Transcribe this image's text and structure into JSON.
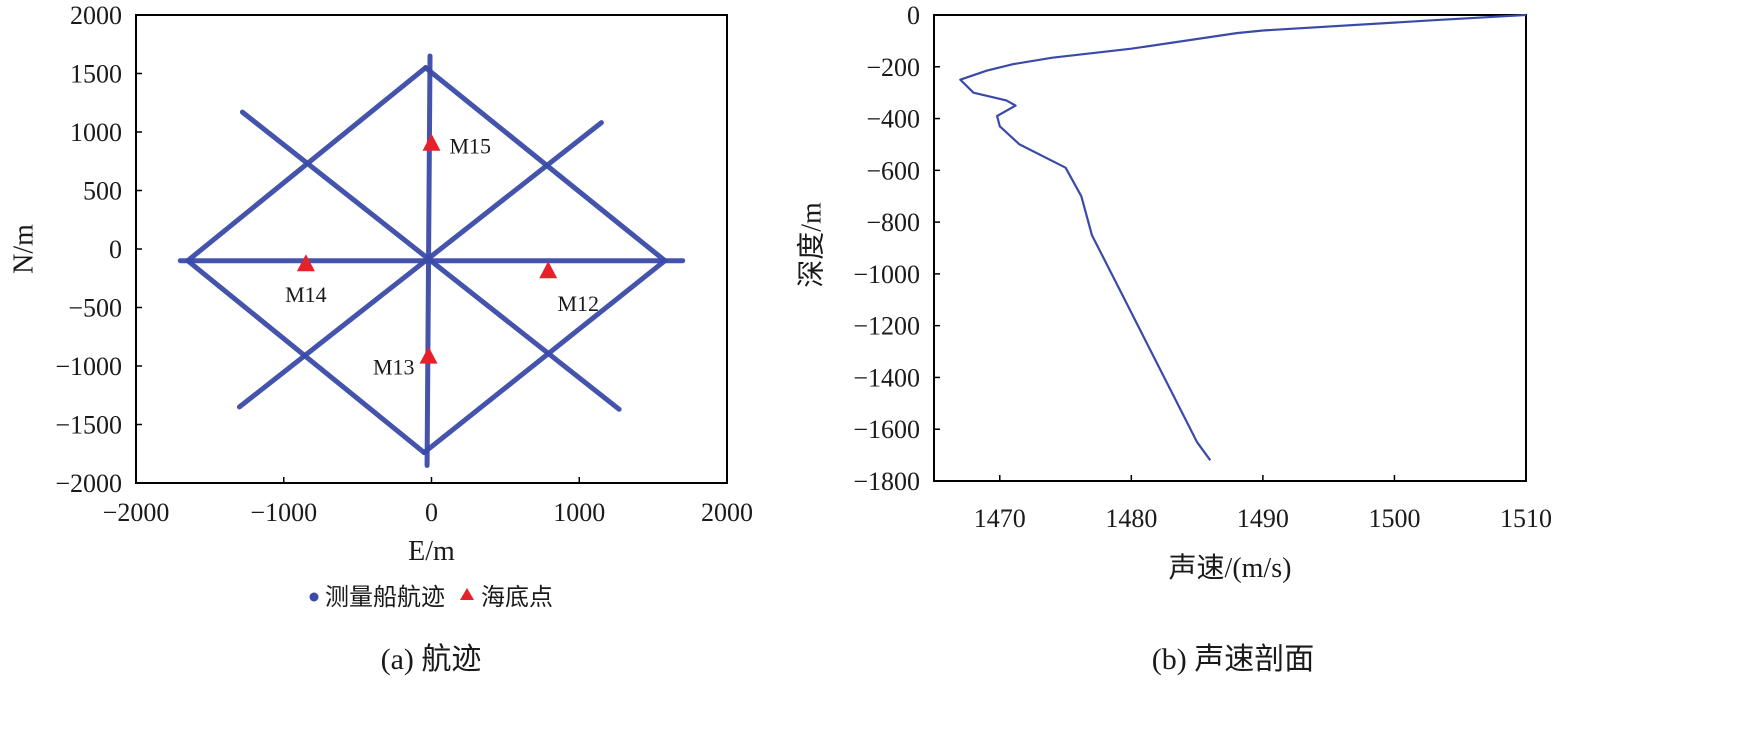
{
  "chart_data": [
    {
      "type": "scatter",
      "caption": "(a) 航迹",
      "xlabel": "E/m",
      "ylabel": "N/m",
      "xlim": [
        -2000,
        2000
      ],
      "ylim": [
        -2000,
        2000
      ],
      "xticks": [
        -2000,
        -1000,
        0,
        1000,
        2000
      ],
      "yticks": [
        2000,
        1500,
        1000,
        500,
        0,
        -500,
        -1000,
        -1500,
        -2000
      ],
      "grid": false,
      "legend_position": "bottom-center",
      "legend": [
        {
          "label": "测量船航迹",
          "marker": "circle",
          "color": "#3a4aa8"
        },
        {
          "label": "海底点",
          "marker": "triangle",
          "color": "#e8202a"
        }
      ],
      "series": [
        {
          "name": "测量船航迹",
          "color": "#3a4aa8",
          "tracks": [
            {
              "from": [
                -1700,
                -100
              ],
              "to": [
                1700,
                -100
              ]
            },
            {
              "from": [
                -10,
                1650
              ],
              "to": [
                -30,
                -1850
              ]
            },
            {
              "from": [
                -1280,
                1170
              ],
              "to": [
                1270,
                -1370
              ]
            },
            {
              "from": [
                -1300,
                -1350
              ],
              "to": [
                1150,
                1080
              ]
            },
            {
              "from": [
                -1650,
                -100
              ],
              "to": [
                -40,
                1550
              ]
            },
            {
              "from": [
                -40,
                1550
              ],
              "to": [
                1580,
                -100
              ]
            },
            {
              "from": [
                1580,
                -100
              ],
              "to": [
                -50,
                -1740
              ]
            },
            {
              "from": [
                -50,
                -1740
              ],
              "to": [
                -1650,
                -100
              ]
            }
          ]
        },
        {
          "name": "海底点",
          "color": "#e8202a",
          "points": [
            {
              "label": "M15",
              "x": 0,
              "y": 900
            },
            {
              "label": "M14",
              "x": -850,
              "y": -130
            },
            {
              "label": "M12",
              "x": 790,
              "y": -190
            },
            {
              "label": "M13",
              "x": -20,
              "y": -920
            }
          ]
        }
      ]
    },
    {
      "type": "line",
      "caption": "(b) 声速剖面",
      "xlabel": "声速/(m/s)",
      "ylabel": "深度/m",
      "xlim": [
        1465,
        1510
      ],
      "ylim": [
        -1800,
        0
      ],
      "xticks": [
        1470,
        1480,
        1490,
        1500,
        1510
      ],
      "yticks": [
        0,
        -200,
        -400,
        -600,
        -800,
        -1000,
        -1200,
        -1400,
        -1600,
        -1800
      ],
      "grid": false,
      "series": [
        {
          "color": "#3a4aa8",
          "points": [
            [
              1510,
              0
            ],
            [
              1503,
              -20
            ],
            [
              1490,
              -60
            ],
            [
              1488,
              -70
            ],
            [
              1480,
              -130
            ],
            [
              1474,
              -165
            ],
            [
              1471,
              -190
            ],
            [
              1469,
              -215
            ],
            [
              1467,
              -250
            ],
            [
              1468,
              -300
            ],
            [
              1470.5,
              -330
            ],
            [
              1471.2,
              -350
            ],
            [
              1469.8,
              -390
            ],
            [
              1470.0,
              -430
            ],
            [
              1471.5,
              -500
            ],
            [
              1475,
              -590
            ],
            [
              1476.2,
              -700
            ],
            [
              1477,
              -850
            ],
            [
              1479,
              -1050
            ],
            [
              1481,
              -1250
            ],
            [
              1483,
              -1450
            ],
            [
              1485,
              -1650
            ],
            [
              1486,
              -1720
            ]
          ]
        }
      ]
    }
  ]
}
